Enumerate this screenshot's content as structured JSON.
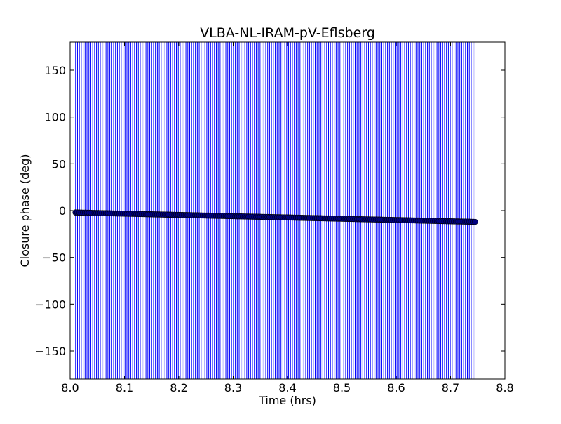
{
  "chart_data": {
    "type": "scatter",
    "title": "VLBA-NL-IRAM-pV-Eflsberg",
    "xlabel": "Time (hrs)",
    "ylabel": "Closure phase (deg)",
    "xlim": [
      8.0,
      8.8
    ],
    "ylim": [
      -180,
      180
    ],
    "xticks": [
      8.0,
      8.1,
      8.2,
      8.3,
      8.4,
      8.5,
      8.6,
      8.7,
      8.8
    ],
    "xtick_labels": [
      "8.0",
      "8.1",
      "8.2",
      "8.3",
      "8.4",
      "8.5",
      "8.6",
      "8.7",
      "8.8"
    ],
    "yticks": [
      -150,
      -100,
      -50,
      0,
      50,
      100,
      150
    ],
    "ytick_labels": [
      "−150",
      "−100",
      "−50",
      "0",
      "50",
      "100",
      "150"
    ],
    "grid": false,
    "colors": {
      "marker": "#000080",
      "errorbar": "#0000ff"
    },
    "series": [
      {
        "marker": "circle",
        "error_bars": "spanning full y range (±180 deg)",
        "x_start": 8.01,
        "x_end": 8.745,
        "x_step": 0.0035,
        "y_start": -2.0,
        "y_end": -12.0
      }
    ]
  }
}
